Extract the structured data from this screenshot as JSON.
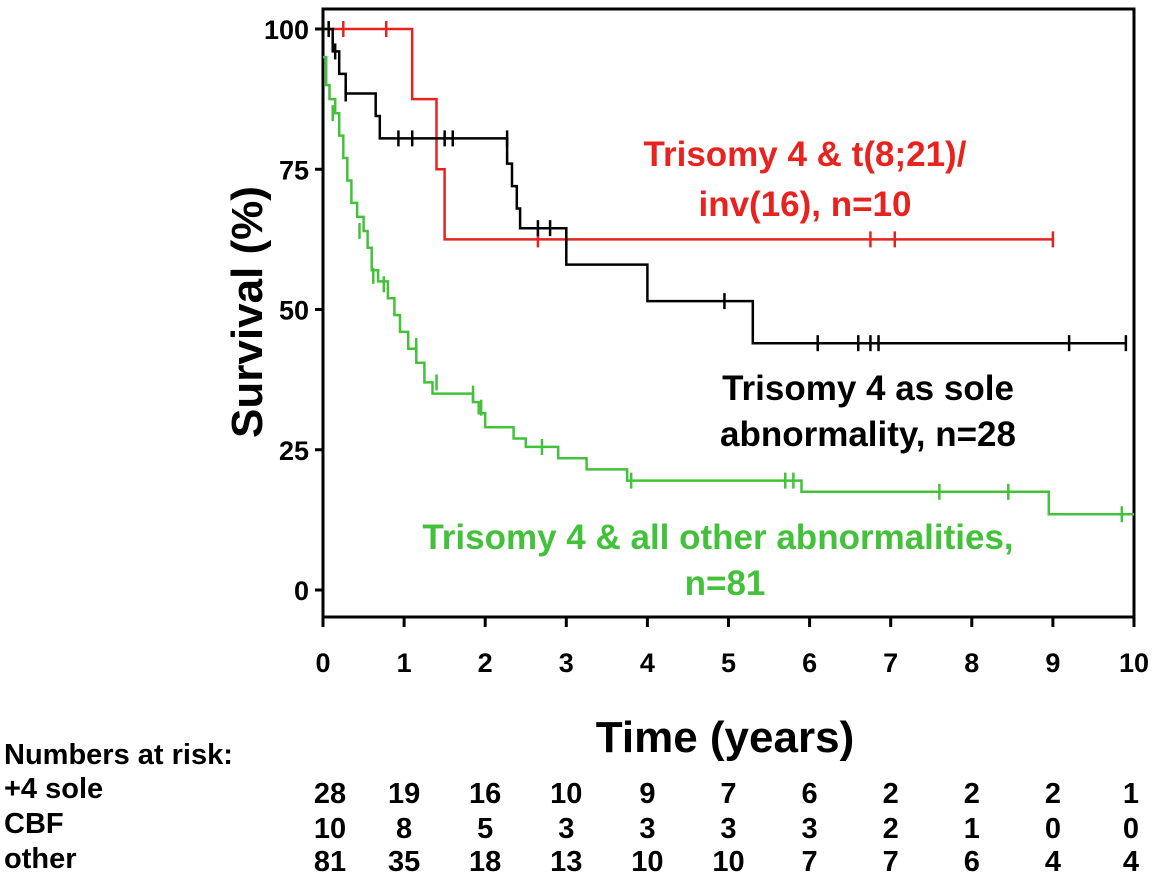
{
  "chart_data": {
    "type": "line",
    "xlabel": "Time (years)",
    "ylabel": "Survival (%)",
    "xlim": [
      0,
      10
    ],
    "ylim": [
      0,
      100
    ],
    "xticks": [
      "0",
      "1",
      "2",
      "3",
      "4",
      "5",
      "6",
      "7",
      "8",
      "9",
      "10"
    ],
    "yticks": [
      "0",
      "25",
      "50",
      "75",
      "100"
    ],
    "grid": false,
    "series": [
      {
        "name": "Trisomy 4 & t(8;21)/ inv(16), n=10",
        "color": "#e8231f",
        "steps": [
          [
            0,
            100
          ],
          [
            1.1,
            100
          ],
          [
            1.1,
            87.5
          ],
          [
            1.4,
            87.5
          ],
          [
            1.4,
            75
          ],
          [
            1.5,
            75
          ],
          [
            1.5,
            62.5
          ],
          [
            9.0,
            62.5
          ]
        ],
        "censored": [
          [
            0.25,
            100
          ],
          [
            0.78,
            100
          ],
          [
            2.65,
            62.5
          ],
          [
            3.0,
            62.5
          ],
          [
            6.75,
            62.5
          ],
          [
            7.05,
            62.5
          ],
          [
            9.0,
            62.5
          ]
        ]
      },
      {
        "name": "Trisomy 4 as sole abnormality, n=28",
        "color": "#000000",
        "steps": [
          [
            0,
            100
          ],
          [
            0.12,
            100
          ],
          [
            0.12,
            96
          ],
          [
            0.2,
            96
          ],
          [
            0.2,
            92
          ],
          [
            0.28,
            92
          ],
          [
            0.28,
            88.5
          ],
          [
            0.65,
            88.5
          ],
          [
            0.65,
            84.5
          ],
          [
            0.7,
            84.5
          ],
          [
            0.7,
            80.5
          ],
          [
            2.27,
            80.5
          ],
          [
            2.27,
            76
          ],
          [
            2.33,
            76
          ],
          [
            2.33,
            72
          ],
          [
            2.39,
            72
          ],
          [
            2.39,
            68
          ],
          [
            2.43,
            68
          ],
          [
            2.43,
            64.5
          ],
          [
            3.0,
            64.5
          ],
          [
            3.0,
            58
          ],
          [
            4.0,
            58
          ],
          [
            4.0,
            51.5
          ],
          [
            5.3,
            51.5
          ],
          [
            5.3,
            44
          ],
          [
            9.9,
            44
          ]
        ],
        "censored": [
          [
            0.07,
            100
          ],
          [
            0.15,
            96
          ],
          [
            0.28,
            88.5
          ],
          [
            0.93,
            80.5
          ],
          [
            1.1,
            80.5
          ],
          [
            1.5,
            80.5
          ],
          [
            1.6,
            80.5
          ],
          [
            2.27,
            80.5
          ],
          [
            2.65,
            64.5
          ],
          [
            2.8,
            64.5
          ],
          [
            4.95,
            51.5
          ],
          [
            6.1,
            44
          ],
          [
            6.6,
            44
          ],
          [
            6.75,
            44
          ],
          [
            6.85,
            44
          ],
          [
            9.2,
            44
          ],
          [
            9.9,
            44
          ]
        ]
      },
      {
        "name": "Trisomy 4 & all other abnormalities, n=81",
        "color": "#44c13a",
        "steps": [
          [
            0,
            95
          ],
          [
            0.04,
            95
          ],
          [
            0.04,
            90
          ],
          [
            0.08,
            90
          ],
          [
            0.08,
            87.5
          ],
          [
            0.15,
            87.5
          ],
          [
            0.15,
            85
          ],
          [
            0.2,
            85
          ],
          [
            0.2,
            81
          ],
          [
            0.25,
            81
          ],
          [
            0.25,
            77
          ],
          [
            0.3,
            77
          ],
          [
            0.3,
            73
          ],
          [
            0.35,
            73
          ],
          [
            0.35,
            69
          ],
          [
            0.42,
            69
          ],
          [
            0.42,
            66.5
          ],
          [
            0.5,
            66.5
          ],
          [
            0.5,
            64
          ],
          [
            0.55,
            64
          ],
          [
            0.55,
            61
          ],
          [
            0.6,
            61
          ],
          [
            0.6,
            57
          ],
          [
            0.68,
            57
          ],
          [
            0.68,
            55
          ],
          [
            0.8,
            55
          ],
          [
            0.8,
            52
          ],
          [
            0.88,
            52
          ],
          [
            0.88,
            49
          ],
          [
            0.95,
            49
          ],
          [
            0.95,
            46
          ],
          [
            1.05,
            46
          ],
          [
            1.05,
            43
          ],
          [
            1.15,
            43
          ],
          [
            1.15,
            40.5
          ],
          [
            1.25,
            40.5
          ],
          [
            1.25,
            37
          ],
          [
            1.35,
            37
          ],
          [
            1.35,
            35
          ],
          [
            1.85,
            35
          ],
          [
            1.85,
            33.5
          ],
          [
            1.92,
            33.5
          ],
          [
            1.92,
            31.5
          ],
          [
            2.0,
            31.5
          ],
          [
            2.0,
            29
          ],
          [
            2.35,
            29
          ],
          [
            2.35,
            27
          ],
          [
            2.5,
            27
          ],
          [
            2.5,
            25.5
          ],
          [
            2.9,
            25.5
          ],
          [
            2.9,
            23.5
          ],
          [
            3.25,
            23.5
          ],
          [
            3.25,
            21.5
          ],
          [
            3.75,
            21.5
          ],
          [
            3.75,
            19.5
          ],
          [
            5.9,
            19.5
          ],
          [
            5.9,
            17.5
          ],
          [
            8.95,
            17.5
          ],
          [
            8.95,
            13.5
          ],
          [
            10.0,
            13.5
          ]
        ],
        "censored": [
          [
            0.12,
            85
          ],
          [
            0.45,
            64
          ],
          [
            0.62,
            56
          ],
          [
            0.75,
            54.5
          ],
          [
            1.15,
            43.5
          ],
          [
            1.4,
            37
          ],
          [
            1.85,
            35
          ],
          [
            1.95,
            32.5
          ],
          [
            2.7,
            25.5
          ],
          [
            3.8,
            19.5
          ],
          [
            5.7,
            19.5
          ],
          [
            5.8,
            19.5
          ],
          [
            7.6,
            17.5
          ],
          [
            8.45,
            17.5
          ],
          [
            9.85,
            13.5
          ]
        ]
      }
    ],
    "annotations": {
      "red": [
        "Trisomy 4 & t(8;21)/",
        "inv(16), n=10"
      ],
      "black": [
        "Trisomy 4 as sole",
        "abnormality, n=28"
      ],
      "green": [
        "Trisomy 4 & all other abnormalities,",
        "n=81"
      ]
    }
  },
  "risk_table": {
    "title": "Numbers at risk:",
    "rows": [
      {
        "label": "+4 sole",
        "values": [
          "28",
          "19",
          "16",
          "10",
          "9",
          "7",
          "6",
          "2",
          "2",
          "2",
          "1"
        ]
      },
      {
        "label": "CBF",
        "values": [
          "10",
          "8",
          "5",
          "3",
          "3",
          "3",
          "3",
          "2",
          "1",
          "0",
          "0"
        ]
      },
      {
        "label": "other",
        "values": [
          "81",
          "35",
          "18",
          "13",
          "10",
          "10",
          "7",
          "7",
          "6",
          "4",
          "4"
        ]
      }
    ]
  }
}
